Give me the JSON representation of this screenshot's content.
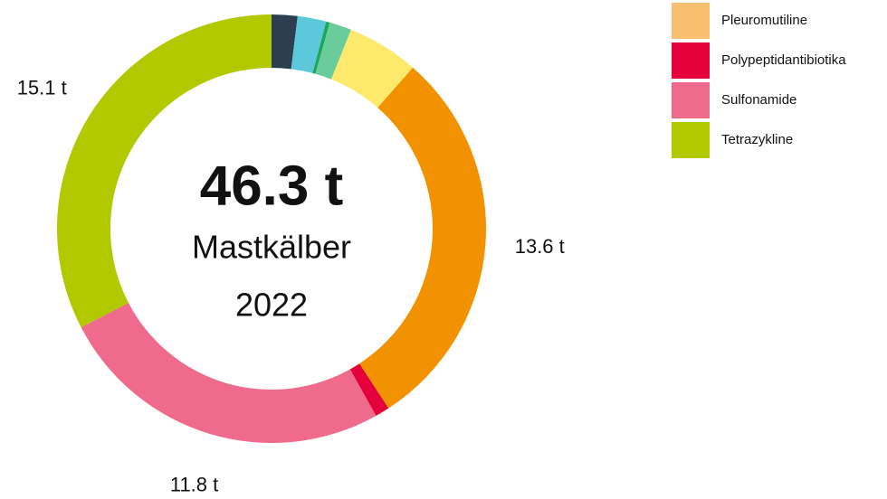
{
  "chart_data": {
    "type": "donut",
    "center_text": [
      "46.3 t",
      "Mastkälber",
      "2022"
    ],
    "categories": [
      null,
      null,
      null,
      null,
      null,
      null,
      "Pleuromutiline",
      "Polypeptidantibiotika",
      "Sulfonamide",
      "Tetrazykline"
    ],
    "values": [
      0.9,
      1.0,
      0.13,
      0.77,
      2.5,
      13.6,
      0,
      0.5,
      11.8,
      15.1
    ],
    "value_labels": [
      null,
      null,
      null,
      null,
      null,
      "13.6 t",
      null,
      null,
      "11.8 t",
      "15.1 t"
    ],
    "colors": [
      "#2d3e50",
      "#5bc8dc",
      "#1aa85a",
      "#6acc9a",
      "#fde96c",
      "#f39200",
      "#f8bf6f",
      "#e4003a",
      "#f06a8c",
      "#b2c900"
    ]
  }
}
